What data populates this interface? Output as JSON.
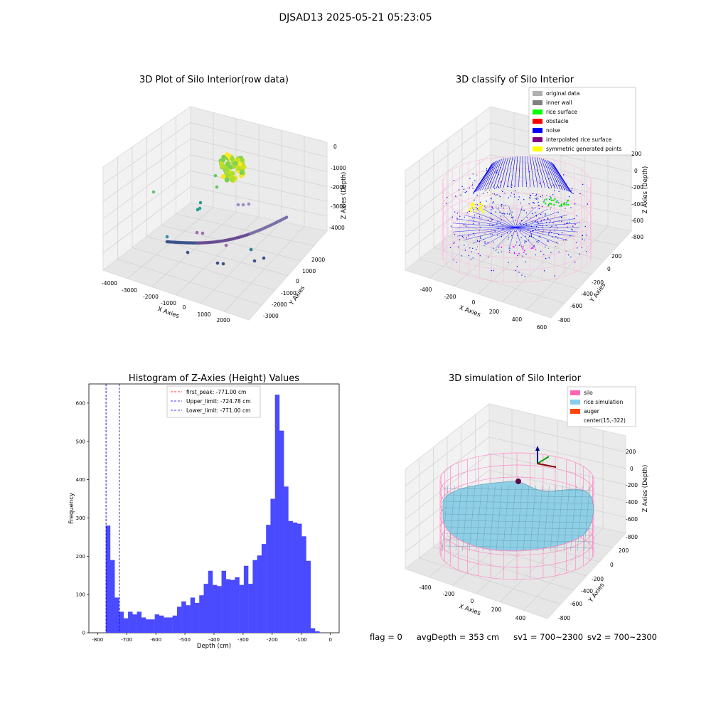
{
  "figure": {
    "title": "DJSAD13 2025-05-21 05:23:05",
    "status": {
      "flag": "flag = 0",
      "avg_depth": "avgDepth = 353 cm",
      "sv1": "sv1 = 700~2300",
      "sv2": "sv2 = 700~2300"
    }
  },
  "chart_data": [
    {
      "type": "scatter",
      "title": "3D Plot of Silo Interior(row data)",
      "xlabel": "X Axies",
      "ylabel": "Y Axies",
      "zlabel": "Z Axies (Depth)",
      "x_ticks": [
        "-4000",
        "-3000",
        "-2000",
        "-1000",
        "0",
        "1000",
        "2000"
      ],
      "y_ticks": [
        "-3000",
        "-2000",
        "-1000",
        "0",
        "1000",
        "2000"
      ],
      "z_ticks": [
        "0",
        "-1000",
        "-2000",
        "-3000",
        "-4000"
      ],
      "grid": true,
      "legend": false,
      "colormap": "viridis"
    },
    {
      "type": "scatter",
      "title": "3D classify of Silo Interior",
      "xlabel": "X Axies",
      "ylabel": "Y Axies",
      "zlabel": "Z Axies (Depth)",
      "x_ticks": [
        "-400",
        "-200",
        "0",
        "200",
        "400",
        "600"
      ],
      "y_ticks": [
        "-800",
        "-600",
        "-400",
        "-200",
        "0",
        "200"
      ],
      "z_ticks": [
        "200",
        "0",
        "-200",
        "-400",
        "-600",
        "-800"
      ],
      "grid": true,
      "legend_position": "top-right",
      "legend": [
        {
          "label": "original data",
          "color": "#b0b0b0"
        },
        {
          "label": "inner wall",
          "color": "#808080"
        },
        {
          "label": "rice surface",
          "color": "#00ff00"
        },
        {
          "label": "obstacle",
          "color": "#ff0000"
        },
        {
          "label": "noise",
          "color": "#0000ff"
        },
        {
          "label": "interpolated rice surface",
          "color": "#800080"
        },
        {
          "label": "symmetric generated points",
          "color": "#ffff00"
        }
      ]
    },
    {
      "type": "bar",
      "title": "Histogram of Z-Axies (Height) Values",
      "xlabel": "Depth (cm)",
      "ylabel": "Frequency",
      "xlim": [
        -800,
        0
      ],
      "ylim": [
        0,
        650
      ],
      "x_ticks": [
        -800,
        -700,
        -600,
        -500,
        -400,
        -300,
        -200,
        -100,
        0
      ],
      "y_ticks": [
        0,
        100,
        200,
        300,
        400,
        500,
        600
      ],
      "bin_start": -772,
      "bin_width": 15.3,
      "values": [
        280,
        190,
        92,
        55,
        38,
        55,
        48,
        55,
        40,
        35,
        35,
        48,
        45,
        40,
        40,
        45,
        68,
        82,
        72,
        92,
        78,
        98,
        128,
        162,
        125,
        122,
        162,
        140,
        138,
        145,
        125,
        175,
        128,
        190,
        202,
        232,
        282,
        350,
        622,
        528,
        382,
        292,
        288,
        285,
        252,
        188,
        12,
        4
      ],
      "bar_color": "#4a4aff",
      "lines": [
        {
          "label": "first_peak: -771.00 cm",
          "x": -771,
          "color": "#ff0000"
        },
        {
          "label": "Upper_limit: -724.78 cm",
          "x": -724.78,
          "color": "#0000ff"
        },
        {
          "label": "Lower_limit: -771.00 cm",
          "x": -771,
          "color": "#0000ff"
        }
      ],
      "legend_position": "top-center"
    },
    {
      "type": "area",
      "title": "3D simulation of Silo Interior",
      "xlabel": "X Axies",
      "ylabel": "Y Axies",
      "zlabel": "Z Axies (Depth)",
      "x_ticks": [
        "-400",
        "-200",
        "0",
        "200",
        "400"
      ],
      "y_ticks": [
        "-800",
        "-600",
        "-400",
        "-200",
        "0",
        "200"
      ],
      "z_ticks": [
        "200",
        "0",
        "-200",
        "-400",
        "-600",
        "-800"
      ],
      "grid": true,
      "legend_position": "top-right",
      "legend": [
        {
          "label": "silo",
          "color": "#ff69b4"
        },
        {
          "label": "rice simulation",
          "color": "#87ceeb"
        },
        {
          "label": "auger",
          "color": "#ff4500"
        },
        {
          "label": "center(15,-322)",
          "color": ""
        }
      ]
    }
  ]
}
